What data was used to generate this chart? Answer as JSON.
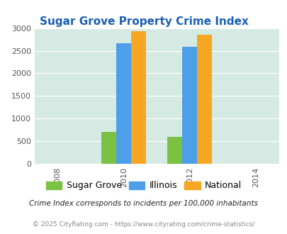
{
  "title": "Sugar Grove Property Crime Index",
  "years": [
    2008,
    2010,
    2012,
    2014
  ],
  "data_years": [
    2010,
    2012
  ],
  "sugar_grove": [
    700,
    600
  ],
  "illinois": [
    2670,
    2580
  ],
  "national": [
    2930,
    2850
  ],
  "colors": {
    "sugar_grove": "#7bc142",
    "illinois": "#4d9fea",
    "national": "#f5a623"
  },
  "ylim": [
    0,
    3000
  ],
  "yticks": [
    0,
    500,
    1000,
    1500,
    2000,
    2500,
    3000
  ],
  "bg_color": "#d6eae4",
  "title_color": "#1a5fb4",
  "legend_labels": [
    "Sugar Grove",
    "Illinois",
    "National"
  ],
  "footnote1": "Crime Index corresponds to incidents per 100,000 inhabitants",
  "footnote2": "© 2025 CityRating.com - https://www.cityrating.com/crime-statistics/",
  "bar_width": 0.45
}
